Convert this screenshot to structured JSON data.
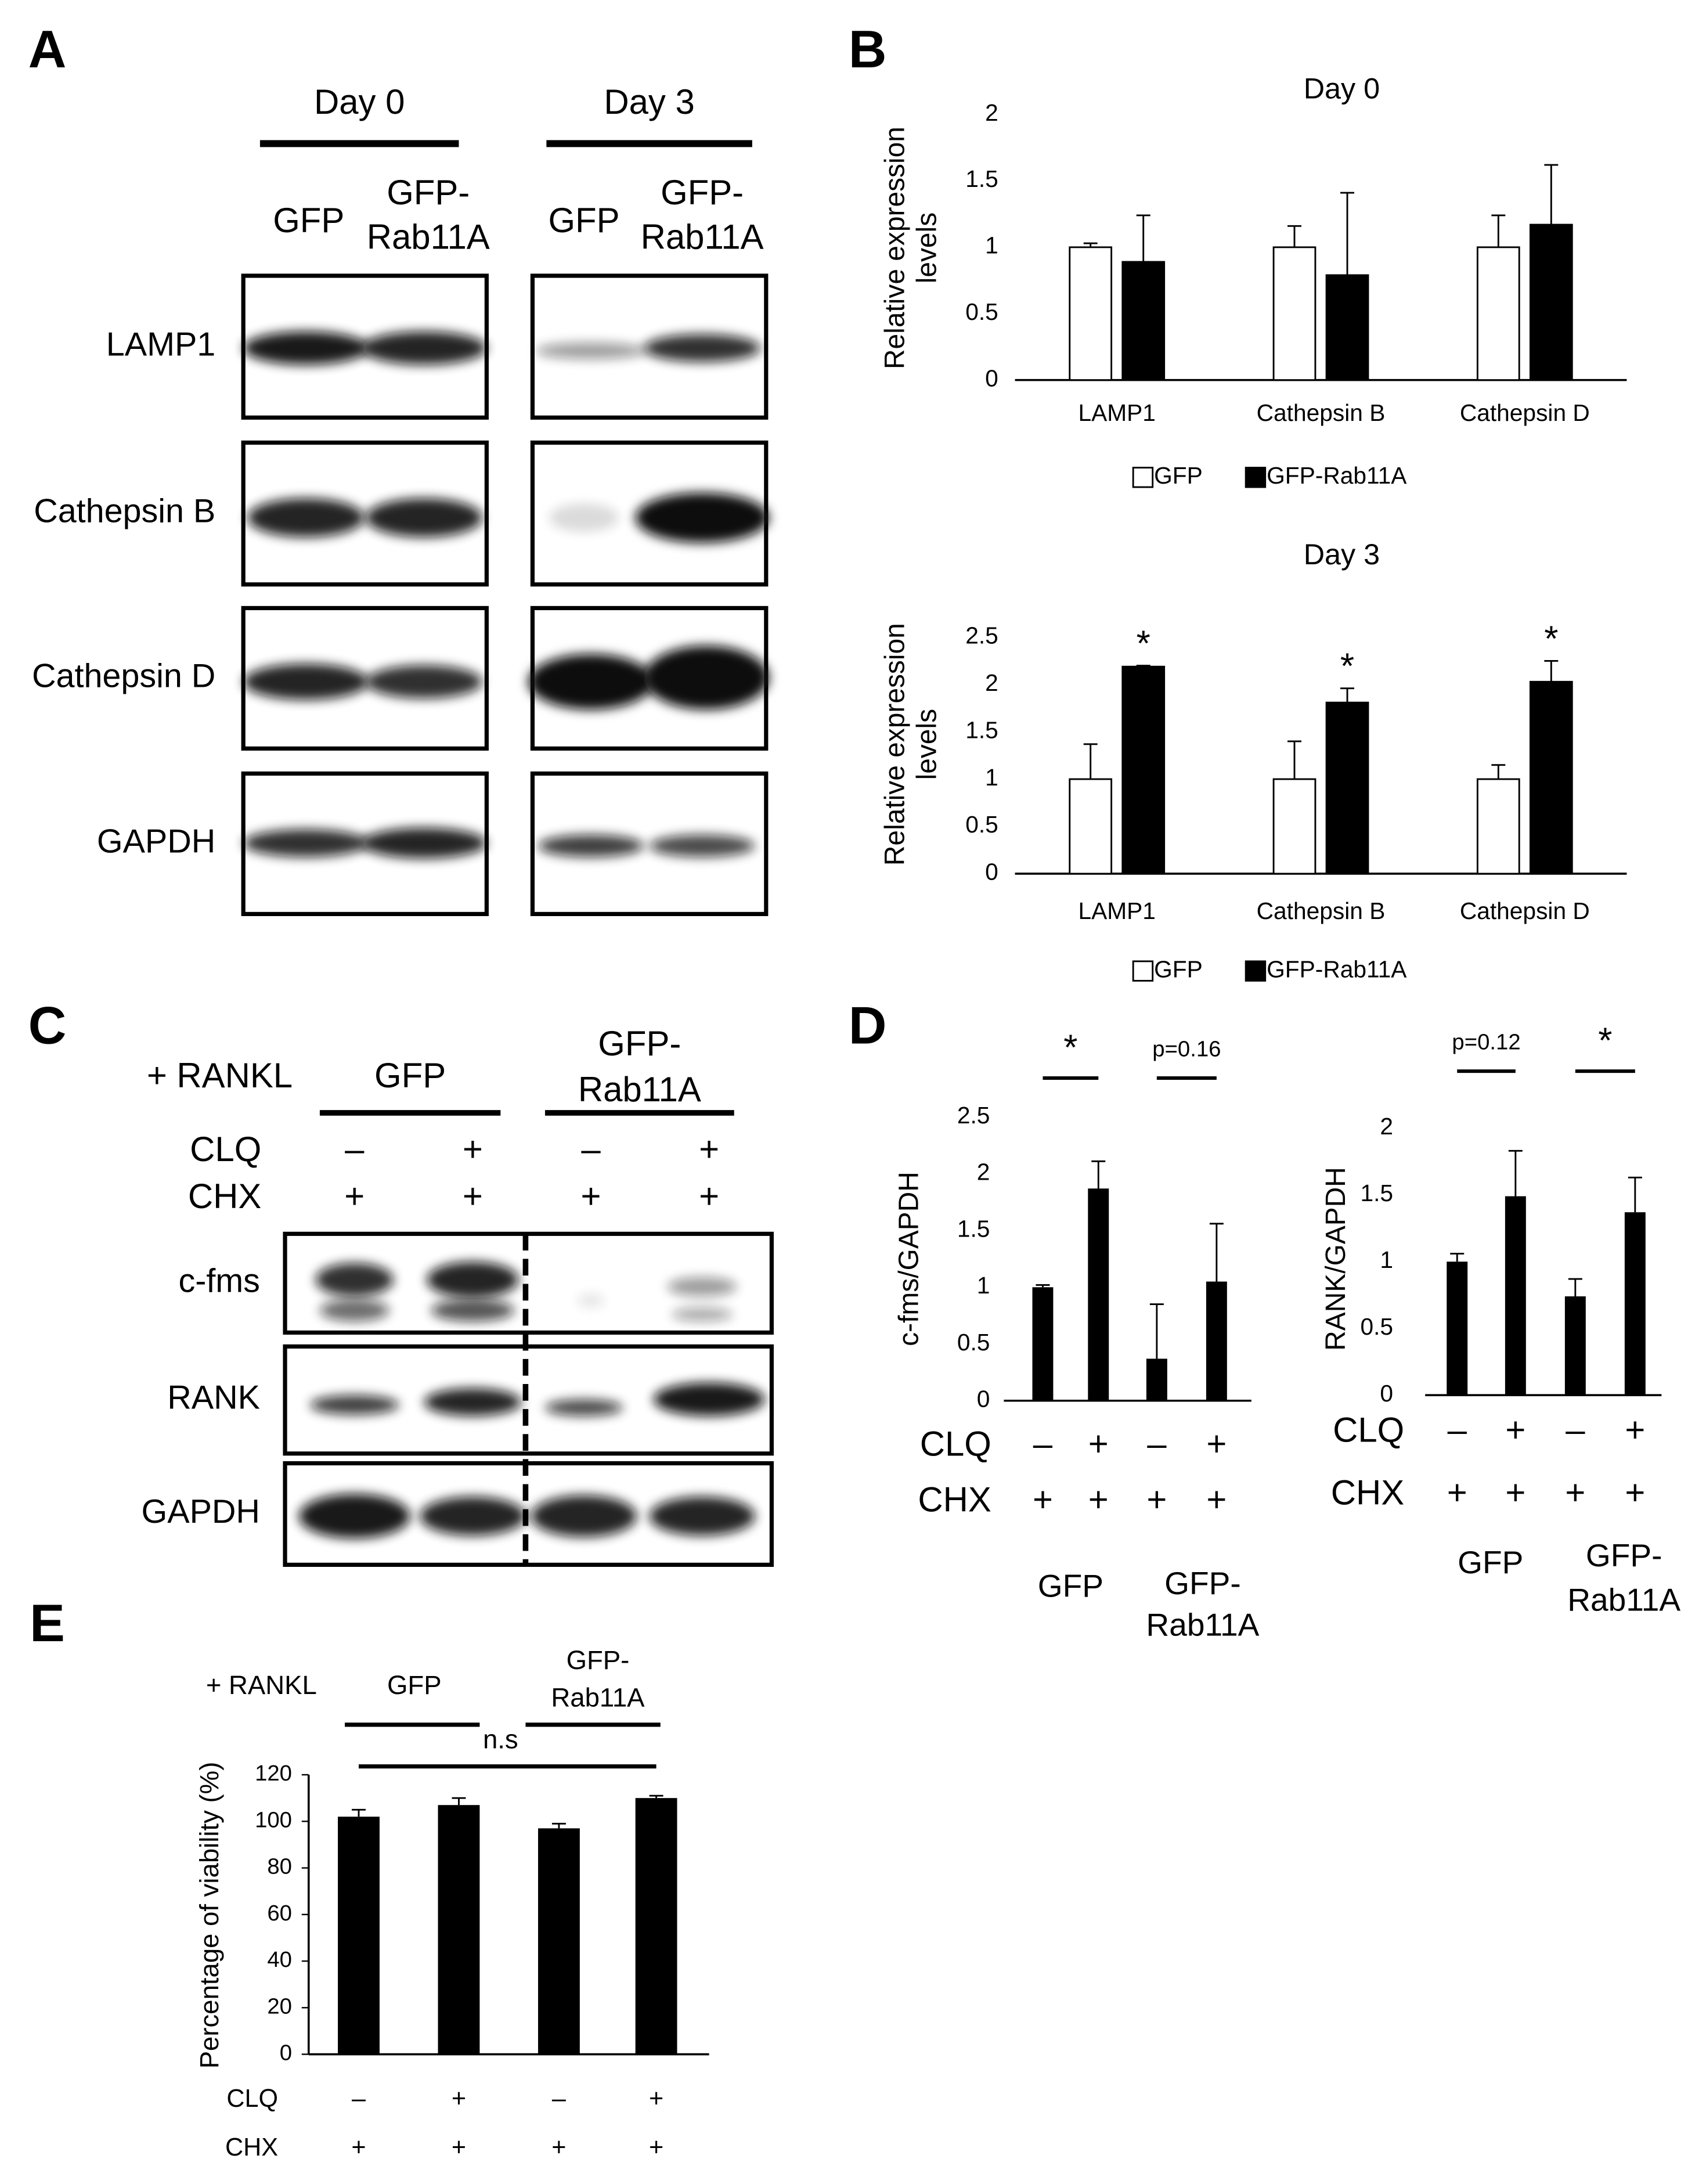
{
  "panel_labels": {
    "a": "A",
    "b": "B",
    "c": "C",
    "d": "D",
    "e": "E"
  },
  "panel_a": {
    "days": [
      "Day 0",
      "Day 3"
    ],
    "lanes": [
      [
        "GFP"
      ],
      [
        "GFP-",
        "Rab11A"
      ]
    ],
    "rows": [
      "LAMP1",
      "Cathepsin B",
      "Cathepsin D",
      "GAPDH"
    ]
  },
  "panel_c": {
    "condition": "+ RANKL",
    "groups": [
      [
        "GFP"
      ],
      [
        "GFP-",
        "Rab11A"
      ]
    ],
    "treatments": [
      {
        "label": "CLQ",
        "values": [
          "–",
          "+",
          "–",
          "+"
        ]
      },
      {
        "label": "CHX",
        "values": [
          "+",
          "+",
          "+",
          "+"
        ]
      }
    ],
    "rows": [
      "c-fms",
      "RANK",
      "GAPDH"
    ]
  },
  "chart_data": [
    {
      "type": "bar",
      "title": "Day 0",
      "y_label": [
        "Relative expression",
        "levels"
      ],
      "categories": [
        "LAMP1",
        "Cathepsin B",
        "Cathepsin D"
      ],
      "series": [
        {
          "name": "GFP",
          "color": "#ffffff",
          "values": [
            1,
            1,
            1
          ],
          "errors": [
            0.03,
            0.16,
            0.24
          ]
        },
        {
          "name": "GFP-Rab11A",
          "color": "#000000",
          "values": [
            0.89,
            0.79,
            1.17
          ],
          "errors": [
            0.35,
            0.62,
            0.45
          ]
        }
      ],
      "ylim": [
        0,
        2
      ],
      "yticks": [
        0,
        0.5,
        1,
        1.5,
        2
      ],
      "legend": "bottom"
    },
    {
      "type": "bar",
      "title": "Day 3",
      "y_label": [
        "Relative expression",
        "levels"
      ],
      "categories": [
        "LAMP1",
        "Cathepsin B",
        "Cathepsin D"
      ],
      "series": [
        {
          "name": "GFP",
          "color": "#ffffff",
          "values": [
            1,
            1,
            1
          ],
          "errors": [
            0.37,
            0.4,
            0.15
          ]
        },
        {
          "name": "GFP-Rab11A",
          "color": "#000000",
          "values": [
            2.19,
            1.81,
            2.03
          ],
          "errors": [
            0.01,
            0.15,
            0.22
          ],
          "annotations": [
            "*",
            "*",
            "*"
          ]
        }
      ],
      "ylim": [
        0,
        2.5
      ],
      "yticks": [
        0,
        0.5,
        1,
        1.5,
        2,
        2.5
      ],
      "legend": "bottom"
    },
    {
      "type": "bar",
      "y_label": [
        "c-fms/GAPDH"
      ],
      "color": "#000000",
      "values": [
        1.0,
        1.87,
        0.37,
        1.05
      ],
      "errors": [
        0.02,
        0.24,
        0.48,
        0.51
      ],
      "ylim": [
        0,
        2.5
      ],
      "yticks": [
        0,
        0.5,
        1,
        1.5,
        2,
        2.5
      ],
      "comparisons": [
        "*",
        "p=0.16"
      ],
      "treatments": [
        {
          "label": "CLQ",
          "values": [
            "–",
            "+",
            "–",
            "+"
          ]
        },
        {
          "label": "CHX",
          "values": [
            "+",
            "+",
            "+",
            "+"
          ]
        }
      ],
      "groups": [
        [
          "GFP"
        ],
        [
          "GFP-",
          "Rab11A"
        ]
      ]
    },
    {
      "type": "bar",
      "y_label": [
        "RANK/GAPDH"
      ],
      "color": "#000000",
      "values": [
        1.0,
        1.49,
        0.74,
        1.37
      ],
      "errors": [
        0.06,
        0.34,
        0.13,
        0.26
      ],
      "ylim": [
        0,
        2
      ],
      "yticks": [
        0,
        0.5,
        1,
        1.5,
        2
      ],
      "comparisons": [
        "p=0.12",
        "*"
      ],
      "treatments": [
        {
          "label": "CLQ",
          "values": [
            "–",
            "+",
            "–",
            "+"
          ]
        },
        {
          "label": "CHX",
          "values": [
            "+",
            "+",
            "+",
            "+"
          ]
        }
      ],
      "groups": [
        [
          "GFP"
        ],
        [
          "GFP-",
          "Rab11A"
        ]
      ]
    },
    {
      "type": "bar",
      "y_label": [
        "Percentage of viability (%)"
      ],
      "color": "#000000",
      "condition": "+ RANKL",
      "annotation": "n.s",
      "values": [
        102,
        107,
        97,
        110
      ],
      "errors": [
        3,
        3,
        2,
        1
      ],
      "ylim": [
        0,
        120
      ],
      "yticks": [
        0,
        20,
        40,
        60,
        80,
        100,
        120
      ],
      "treatments": [
        {
          "label": "CLQ",
          "values": [
            "–",
            "+",
            "–",
            "+"
          ]
        },
        {
          "label": "CHX",
          "values": [
            "+",
            "+",
            "+",
            "+"
          ]
        }
      ],
      "groups": [
        [
          "GFP"
        ],
        [
          "GFP-",
          "Rab11A"
        ]
      ]
    }
  ]
}
